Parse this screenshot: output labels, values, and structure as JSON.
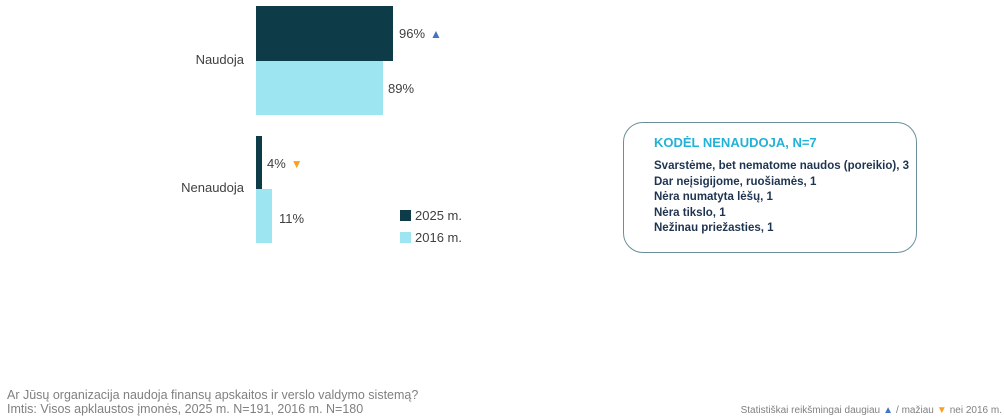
{
  "chart_data": {
    "type": "bar",
    "orientation": "horizontal",
    "categories": [
      "Naudoja",
      "Nenaudoja"
    ],
    "series": [
      {
        "name": "2025 m.",
        "color": "#0D3B48",
        "values": [
          96,
          4
        ],
        "labels": [
          "96%",
          "4%"
        ],
        "significance": [
          "up",
          "down"
        ]
      },
      {
        "name": "2016 m.",
        "color": "#9EE5F2",
        "values": [
          89,
          11
        ],
        "labels": [
          "89%",
          "11%"
        ],
        "significance": [
          null,
          null
        ]
      }
    ],
    "xlim": [
      0,
      100
    ],
    "legend_position": "right-bottom"
  },
  "icons": {
    "up": "▲",
    "down": "▼"
  },
  "colors": {
    "dark": "#0D3B48",
    "light": "#9EE5F2",
    "blue": "#4472C4",
    "orange": "#FFA01C",
    "title_cyan": "#23B2D7",
    "box_border": "#6B8F9A",
    "box_text": "#1F3450",
    "gray": "#808080"
  },
  "callout": {
    "title": "KODĖL NENAUDOJA, N=7",
    "items": [
      "Svarstėme, bet nematome naudos (poreikio), 3",
      "Dar neįsigijome, ruošiamės, 1",
      "Nėra numatyta lėšų, 1",
      "Nėra tikslo, 1",
      "Nežinau priežasties, 1"
    ]
  },
  "footer": {
    "question": "Ar Jūsų organizacija naudoja finansų apskaitos ir verslo valdymo sistemą?",
    "sample": "Imtis: Visos apklaustos įmonės, 2025 m. N=191, 2016 m. N=180",
    "note_prefix": "Statistiškai reikšmingai daugiau",
    "note_middle": "/ mažiau",
    "note_suffix": "nei 2016 m."
  }
}
